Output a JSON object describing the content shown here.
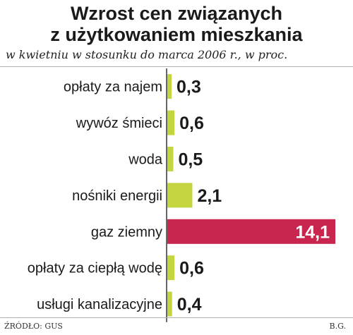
{
  "title_line1": "Wzrost cen związanych",
  "title_line2": "z użytkowaniem mieszkania",
  "subtitle": "w kwietniu w stosunku do marca 2006 r., w proc.",
  "source": "ŹRÓDŁO: GUS",
  "author": "B.G.",
  "colors": {
    "bar": "#c4d540",
    "highlight": "#c8254f",
    "axis": "#333333",
    "divider": "#b0b0b0"
  },
  "chart_data": {
    "type": "bar",
    "orientation": "horizontal",
    "categories": [
      "opłaty za najem",
      "wywóz śmieci",
      "woda",
      "nośniki energii",
      "gaz ziemny",
      "opłaty za ciepłą wodę",
      "usługi kanalizacyjne"
    ],
    "values": [
      0.3,
      0.6,
      0.5,
      2.1,
      14.1,
      0.6,
      0.4
    ],
    "labels": [
      "0,3",
      "0,6",
      "0,5",
      "2,1",
      "14,1",
      "0,6",
      "0,4"
    ],
    "highlight_index": 4,
    "xlim": [
      0,
      14.1
    ]
  }
}
